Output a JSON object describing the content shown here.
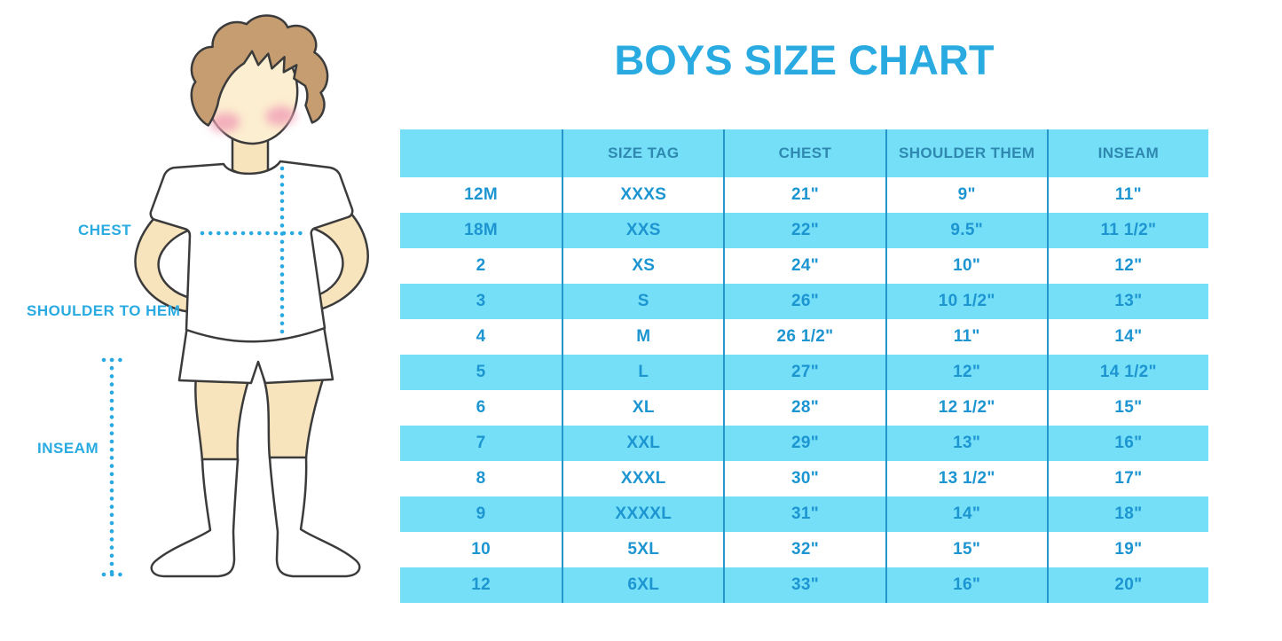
{
  "title": "BOYS SIZE CHART",
  "figure": {
    "labels": {
      "chest": "CHEST",
      "shoulder_to_hem": "SHOULDER TO HEM",
      "inseam": "INSEAM"
    }
  },
  "chart_data": {
    "type": "table",
    "title": "BOYS SIZE CHART",
    "columns": [
      "",
      "SIZE TAG",
      "CHEST",
      "SHOULDER THEM",
      "INSEAM"
    ],
    "rows": [
      [
        "12M",
        "XXXS",
        "21\"",
        "9\"",
        "11\""
      ],
      [
        "18M",
        "XXS",
        "22\"",
        "9.5\"",
        "11 1/2\""
      ],
      [
        "2",
        "XS",
        "24\"",
        "10\"",
        "12\""
      ],
      [
        "3",
        "S",
        "26\"",
        "10 1/2\"",
        "13\""
      ],
      [
        "4",
        "M",
        "26 1/2\"",
        "11\"",
        "14\""
      ],
      [
        "5",
        "L",
        "27\"",
        "12\"",
        "14 1/2\""
      ],
      [
        "6",
        "XL",
        "28\"",
        "12 1/2\"",
        "15\""
      ],
      [
        "7",
        "XXL",
        "29\"",
        "13\"",
        "16\""
      ],
      [
        "8",
        "XXXL",
        "30\"",
        "13 1/2\"",
        "17\""
      ],
      [
        "9",
        "XXXXL",
        "31\"",
        "14\"",
        "18\""
      ],
      [
        "10",
        "5XL",
        "32\"",
        "15\"",
        "19\""
      ],
      [
        "12",
        "6XL",
        "33\"",
        "16\"",
        "20\""
      ]
    ],
    "layout": {
      "striped": true,
      "stripe_rows": "even",
      "header_filled": true
    }
  },
  "colors": {
    "accent_blue": "#29abe2",
    "row_fill": "#74dff7",
    "divider": "#2596c9",
    "header_text": "#2f88b0",
    "cell_text": "#1d95d1",
    "dotted_line": "#29a9e1"
  }
}
